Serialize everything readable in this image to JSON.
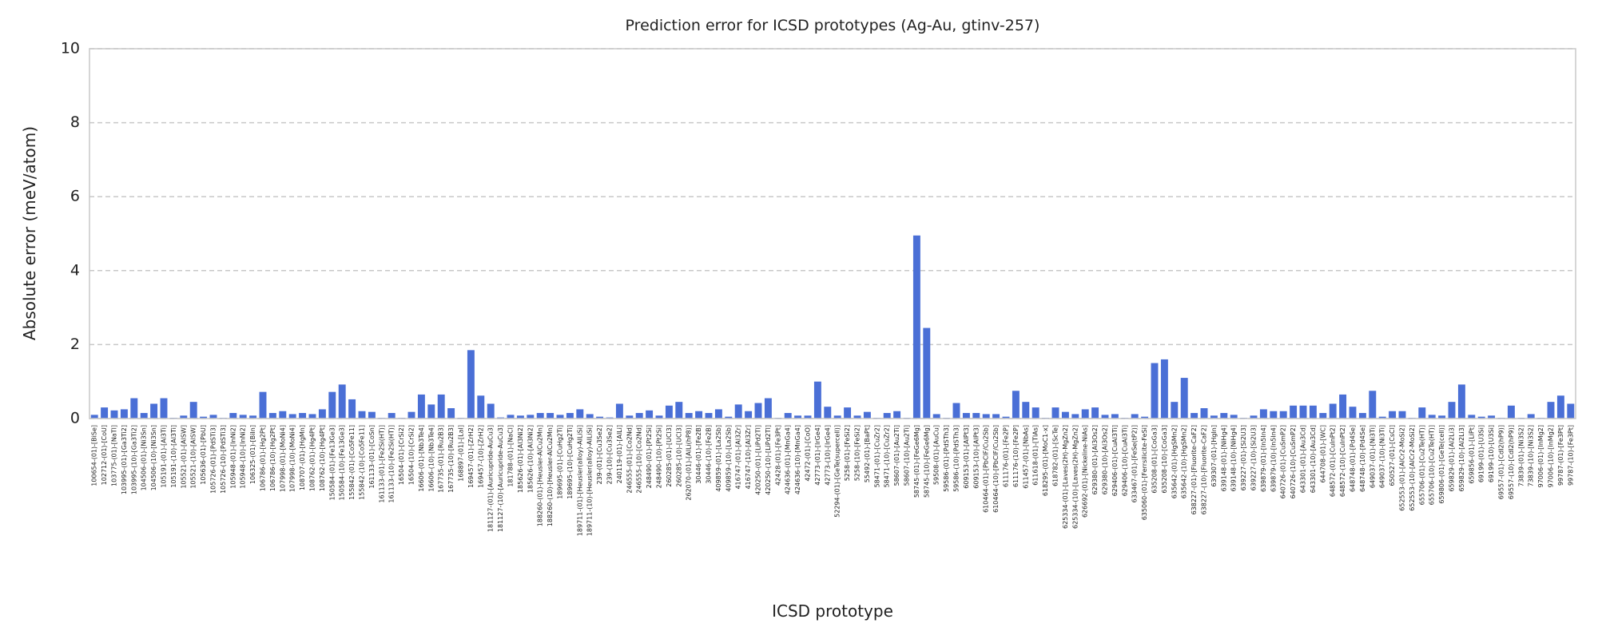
{
  "chart_data": {
    "type": "bar",
    "title": "Prediction error for ICSD prototypes (Ag-Au, gtinv-257)",
    "x_label": "ICSD prototype",
    "y_label": "Absolute error (meV/atom)",
    "color": "#4a6fd6",
    "grid": true,
    "ylim": [
      0,
      10
    ],
    "yticks": [
      0,
      2,
      4,
      6,
      8,
      10
    ],
    "categories": [
      "100654-(01)-[BiSe]",
      "102712-(01)-[CoU]",
      "103775-(01)-[NaTl]",
      "103995-(01)-[Ga3Ti2]",
      "103995-(10)-[Ga3Ti2]",
      "104506-(01)-[Ni3Sn]",
      "104506-(10)-[Ni3Sn]",
      "105191-(01)-[Al3Ti]",
      "105191-(10)-[Al3Ti]",
      "105521-(01)-[AlSW]",
      "105521-(10)-[AlSW]",
      "105636-(01)-[PbU]",
      "105726-(01)-[PdSTi3]",
      "105726-(10)-[PdSTi3]",
      "105948-(01)-[InNi2]",
      "105948-(10)-[InNi2]",
      "106325-(01)-[BiIn]",
      "106786-(01)-[Hg2Pt]",
      "106786-(10)-[Hg2Pt]",
      "107998-(01)-[MoNi4]",
      "107998-(10)-[MoNi4]",
      "108707-(01)-[HgMn]",
      "108762-(01)-[Hg4Pt]",
      "108762-(10)-[Hg4Pt]",
      "150584-(01)-[Fe13Ge3]",
      "150584-(10)-[Fe13Ge3]",
      "155842-(01)-[Co5Fe11]",
      "155842-(10)-[Co5Fe11]",
      "161133-(01)-[CoSn]",
      "161133-(01)-[Fe2Si(HT)]",
      "161133-(10)-[Fe2Si(HT)]",
      "16504-(01)-[CrSi2]",
      "16504-(10)-[CrSi2]",
      "16606-(01)-[Nb3Te4]",
      "16606-(10)-[Nb3Te4]",
      "167735-(01)-[Ru2B3]",
      "167735-(10)-[Ru2B3]",
      "168897-(01)-[LaI]",
      "169457-(01)-[ZrH2]",
      "169457-(10)-[ZrH2]",
      "181127-(01)-[Auricupride-AuCu3]",
      "181127-(10)-[Auricupride-AuCu3]",
      "181788-(01)-[NaCl]",
      "185626-(01)-[Al3Ni2]",
      "185626-(10)-[Al3Ni2]",
      "188260-(01)-[Heusler-AlCu2Mn]",
      "188260-(10)-[Heusler-AlCu2Mn]",
      "189695-(01)-[CuHg2Ti]",
      "189695-(10)-[CuHg2Ti]",
      "189711-(01)-[Heusler(alloy)-AlLiSi]",
      "189711-(10)-[Heusler(alloy)-AlLiSi]",
      "239-(01)-[Cu3Se2]",
      "239-(10)-[Cu3Se2]",
      "240119-(01)-[AlLi]",
      "246555-(01)-[Co2Nd]",
      "246555-(10)-[Co2Nd]",
      "248490-(01)-[Pt2Si]",
      "248490-(10)-[Pt2Si]",
      "260285-(01)-[UCl3]",
      "260285-(10)-[UCl3]",
      "262070-(01)-[AlLi(hP8)]",
      "30446-(01)-[Fe2B]",
      "30446-(10)-[Fe2B]",
      "409859-(01)-[La2Sb]",
      "409859-(10)-[La2Sb]",
      "416747-(01)-[Al3Zr]",
      "416747-(10)-[Al3Zr]",
      "420250-(01)-[LiPd2Tl]",
      "420250-(10)-[LiPd2Tl]",
      "42428-(01)-[Fe3Pt]",
      "424636-(01)-[MnGa4]",
      "424636-(10)-[MnGa4]",
      "42472-(01)-[CoO]",
      "42773-(01)-[IrGe4]",
      "42773-(10)-[IrGe4]",
      "52294-(01)-[GeTe(supercell)]",
      "5258-(01)-[FeSi2]",
      "5258-(10)-[FeSi2]",
      "55492-(01)-[BaPt]",
      "58471-(01)-[CuZr2]",
      "58471-(10)-[CuZr2]",
      "58607-(01)-[Au2Ti]",
      "58607-(10)-[Au2Ti]",
      "58745-(01)-[FeGe6Mg]",
      "58745-(10)-[FeGe6Mg]",
      "59508-(01)-[AuCu]",
      "59586-(01)-[PdSTh3]",
      "59586-(10)-[PdSTh3]",
      "609153-(01)-[AlPt3]",
      "609153-(10)-[AlPt3]",
      "610464-(01)-[PbClF/Cu2Sb]",
      "610464-(10)-[PbClF/Cu2Sb]",
      "611176-(01)-[Fe2P]",
      "611176-(10)-[Fe2P]",
      "611457-(01)-[NbAs]",
      "611618-(01)-[TlAs]",
      "618295-(01)-[MoC1-x]",
      "618782-(01)-[ScTe]",
      "625334-(01)-[Laves(2H)-MgZn2]",
      "625334-(10)-[Laves(2H)-MgZn2]",
      "626692-(01)-[Nickeline-NiAs]",
      "629380-(01)-[Al3Os2]",
      "629380-(10)-[Al3Os2]",
      "629406-(01)-[CuAl3Ti]",
      "629406-(10)-[CuAl3Ti]",
      "633467-(01)-[FeSe(tP2)]",
      "635060-(01)-[Ferrsilicite-FeSi]",
      "635208-(01)-[CoGa3]",
      "635208-(10)-[CoGa3]",
      "635642-(01)-[HgSMn2]",
      "635642-(10)-[HgSMn2]",
      "638227-(01)-[Fluorite-CaF2]",
      "638227-(10)-[Fluorite-CaF2]",
      "639307-(01)-[HgIn]",
      "639148-(01)-[NiHg4]",
      "639148-(10)-[NiHg4]",
      "639227-(01)-[Si2U3]",
      "639227-(10)-[Si2U3]",
      "639879-(01)-[In5In4]",
      "639879-(10)-[In5In4]",
      "640726-(01)-[CuSmP2]",
      "640726-(10)-[CuSmP2]",
      "643301-(01)-[Au3Cd]",
      "643301-(10)-[Au3Cd]",
      "644708-(01)-[WC]",
      "648572-(01)-[CuInPt2]",
      "648572-(10)-[CuInPt2]",
      "648748-(01)-[Pd4Se]",
      "648748-(10)-[Pd4Se]",
      "649037-(01)-[Ni3Ti]",
      "649037-(10)-[Ni3Ti]",
      "650527-(01)-[CsCl]",
      "652553-(01)-[AlCr2-MoSi2]",
      "652553-(10)-[AlCr2-MoSi2]",
      "655706-(01)-[Cu2Te(HT)]",
      "655706-(10)-[Cu2Te(HT)]",
      "659806-(01)-[GeTe(cell)]",
      "659829-(01)-[Al2Li3]",
      "659829-(10)-[Al2Li3]",
      "659856-(01)-[LiPt]",
      "69199-(01)-[U3Si]",
      "69199-(10)-[U3Si]",
      "69557-(01)-[CdI2(hP9)]",
      "69557-(10)-[CdI2(hP9)]",
      "73839-(01)-[Ni3S2]",
      "73839-(10)-[Ni3S2]",
      "97006-(01)-[InMg2]",
      "97006-(10)-[InMg2]",
      "99787-(01)-[Fe3Pt]",
      "99787-(10)-[Fe3Pt]"
    ],
    "values": [
      0.1,
      0.3,
      0.22,
      0.25,
      0.55,
      0.15,
      0.4,
      0.55,
      0.02,
      0.08,
      0.45,
      0.05,
      0.1,
      0.02,
      0.15,
      0.1,
      0.08,
      0.72,
      0.15,
      0.2,
      0.12,
      0.15,
      0.12,
      0.25,
      0.72,
      0.92,
      0.52,
      0.2,
      0.18,
      0.02,
      0.15,
      0.02,
      0.18,
      0.65,
      0.38,
      0.65,
      0.28,
      0.02,
      1.85,
      0.62,
      0.4,
      0.03,
      0.1,
      0.08,
      0.1,
      0.15,
      0.15,
      0.1,
      0.15,
      0.25,
      0.12,
      0.05,
      0.03,
      0.4,
      0.08,
      0.15,
      0.22,
      0.08,
      0.35,
      0.45,
      0.15,
      0.2,
      0.15,
      0.25,
      0.05,
      0.38,
      0.2,
      0.42,
      0.55,
      0.02,
      0.15,
      0.08,
      0.08,
      1.0,
      0.32,
      0.08,
      0.3,
      0.08,
      0.18,
      0.02,
      0.15,
      0.2,
      0.02,
      4.95,
      2.45,
      0.12,
      0.02,
      0.42,
      0.15,
      0.15,
      0.12,
      0.12,
      0.05,
      0.75,
      0.45,
      0.3,
      0.02,
      0.3,
      0.18,
      0.12,
      0.25,
      0.3,
      0.1,
      0.12,
      0.02,
      0.12,
      0.05,
      1.5,
      1.6,
      0.45,
      1.1,
      0.15,
      0.28,
      0.08,
      0.15,
      0.1,
      0.02,
      0.08,
      0.25,
      0.2,
      0.2,
      0.35,
      0.35,
      0.35,
      0.15,
      0.4,
      0.65,
      0.32,
      0.15,
      0.75,
      0.05,
      0.2,
      0.2,
      0.02,
      0.3,
      0.1,
      0.08,
      0.45,
      0.92,
      0.1,
      0.05,
      0.08,
      0.02,
      0.35,
      0.02,
      0.12,
      0.02,
      0.45,
      0.62,
      0.4
    ]
  }
}
